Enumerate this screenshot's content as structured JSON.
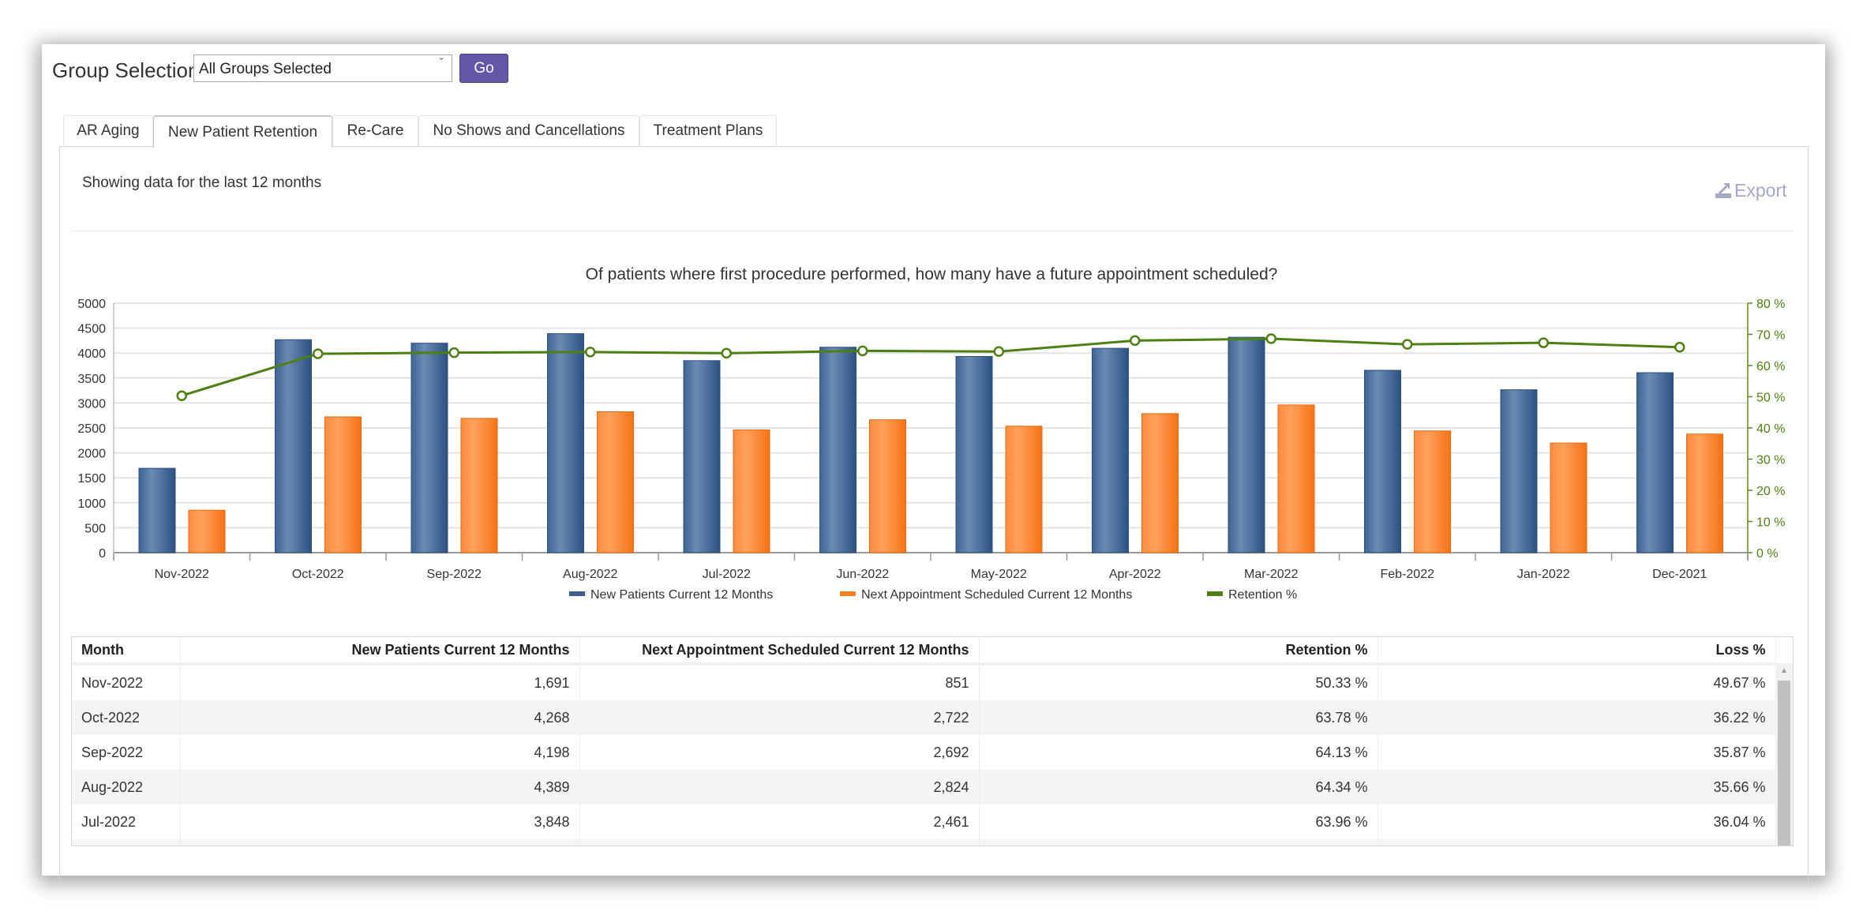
{
  "header": {
    "group_label": "Group Selection",
    "group_select_value": "All Groups Selected",
    "go_label": "Go"
  },
  "tabs": [
    {
      "label": "AR Aging"
    },
    {
      "label": "New Patient Retention",
      "active": true
    },
    {
      "label": "Re-Care"
    },
    {
      "label": "No Shows and Cancellations"
    },
    {
      "label": "Treatment Plans"
    }
  ],
  "content": {
    "showing_text": "Showing data for the last 12 months",
    "export_label": "Export",
    "export_icon": "export-icon"
  },
  "chart_data": {
    "type": "bar",
    "title": "Of patients where first procedure performed, how many have a future appointment scheduled?",
    "categories": [
      "Nov-2022",
      "Oct-2022",
      "Sep-2022",
      "Aug-2022",
      "Jul-2022",
      "Jun-2022",
      "May-2022",
      "Apr-2022",
      "Mar-2022",
      "Feb-2022",
      "Jan-2022",
      "Dec-2021"
    ],
    "y_left": {
      "range": [
        0,
        5000
      ],
      "ticks": [
        "0",
        "500",
        "1000",
        "1500",
        "2000",
        "2500",
        "3000",
        "3500",
        "4000",
        "4500",
        "5000"
      ]
    },
    "y_right": {
      "range": [
        0,
        80
      ],
      "ticks": [
        "0 %",
        "10 %",
        "20 %",
        "30 %",
        "40 %",
        "50 %",
        "60 %",
        "70 %",
        "80 %"
      ]
    },
    "grid": true,
    "legend_position": "bottom",
    "series": [
      {
        "name": "New Patients Current 12 Months",
        "type": "bar",
        "axis": "left",
        "color": "#3b5f8d",
        "values": [
          1691,
          4268,
          4198,
          4389,
          3848,
          4118,
          3932,
          4096,
          4317,
          3655,
          3265,
          3607
        ]
      },
      {
        "name": "Next Appointment Scheduled Current 12 Months",
        "type": "bar",
        "axis": "left",
        "color": "#ff7f27",
        "values": [
          851,
          2722,
          2692,
          2824,
          2461,
          2663,
          2535,
          2787,
          2960,
          2440,
          2197,
          2377
        ]
      },
      {
        "name": "Retention %",
        "type": "line",
        "axis": "right",
        "color": "#4d7f12",
        "values": [
          50.33,
          63.78,
          64.13,
          64.34,
          63.96,
          64.7,
          64.5,
          68.0,
          68.6,
          66.8,
          67.3,
          65.9
        ]
      }
    ]
  },
  "table": {
    "columns": [
      "Month",
      "New Patients Current 12 Months",
      "Next Appointment Scheduled Current 12 Months",
      "Retention %",
      "Loss %"
    ],
    "rows": [
      [
        "Nov-2022",
        "1,691",
        "851",
        "50.33 %",
        "49.67 %"
      ],
      [
        "Oct-2022",
        "4,268",
        "2,722",
        "63.78 %",
        "36.22 %"
      ],
      [
        "Sep-2022",
        "4,198",
        "2,692",
        "64.13 %",
        "35.87 %"
      ],
      [
        "Aug-2022",
        "4,389",
        "2,824",
        "64.34 %",
        "35.66 %"
      ],
      [
        "Jul-2022",
        "3,848",
        "2,461",
        "63.96 %",
        "36.04 %"
      ]
    ]
  }
}
